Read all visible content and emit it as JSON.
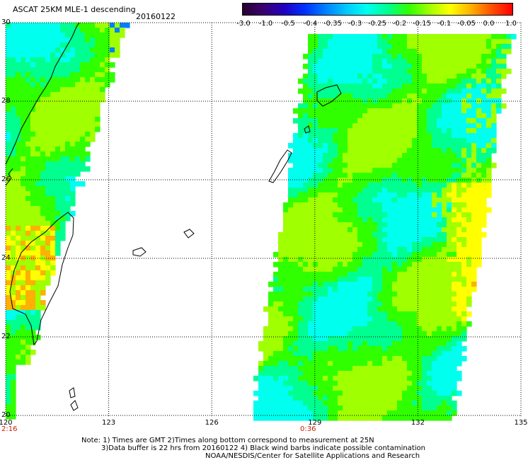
{
  "header": {
    "title": "ASCAT 25KM MLE-1 descending",
    "date": "20160122"
  },
  "colorbar": {
    "labels": [
      "-3.0",
      "-1.0",
      "-0.5",
      "-0.4",
      "-0.35",
      "-0.3",
      "-0.25",
      "-0.2",
      "-0.15",
      "-0.1",
      "-0.05",
      "0.0",
      "1.0"
    ],
    "colors": [
      "#2a0030",
      "#3a0070",
      "#2000c0",
      "#0030ff",
      "#0080ff",
      "#00c8ff",
      "#00ffee",
      "#00ff90",
      "#30ff00",
      "#a0ff00",
      "#ffff00",
      "#ffb000",
      "#ff5000",
      "#ff0000"
    ]
  },
  "map": {
    "lat_labels": [
      "30",
      "28",
      "26",
      "24",
      "22",
      "20"
    ],
    "lon_labels": [
      "120",
      "123",
      "126",
      "129",
      "132",
      "135"
    ],
    "lat_range": [
      20,
      30
    ],
    "lon_range": [
      120,
      135
    ],
    "times": [
      "2:16",
      "0:36"
    ],
    "colors": {
      "cyan": "#00ffee",
      "cyan_green": "#00ff90",
      "green": "#30ff00",
      "yellow_green": "#a0ff00",
      "yellow": "#ffff00",
      "orange": "#ffb000",
      "blue": "#0080ff"
    }
  },
  "notes": {
    "line1": "Note: 1) Times are GMT 2)Times along bottom correspond to measurement at 25N",
    "line2": "3)Data buffer is 22 hrs from 20160122 4) Black wind barbs indicate possible contamination",
    "credit": "NOAA/NESDIS/Center for Satellite Applications and Research"
  }
}
